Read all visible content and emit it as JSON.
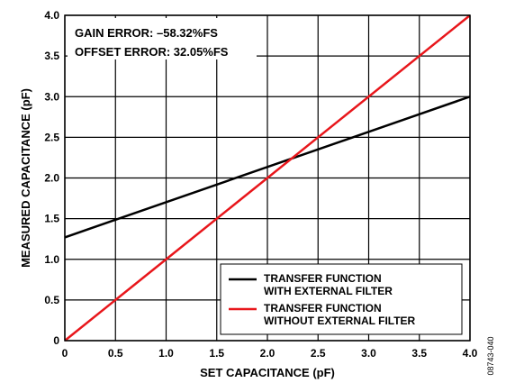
{
  "chart_data": {
    "type": "line",
    "xlabel": "SET CAPACITANCE (pF)",
    "ylabel": "MEASURED CAPACITANCE (pF)",
    "xlim": [
      0,
      4.0
    ],
    "ylim": [
      0,
      4.0
    ],
    "x_ticks": [
      "0",
      "0.5",
      "1.0",
      "1.5",
      "2.0",
      "2.5",
      "3.0",
      "3.5",
      "4.0"
    ],
    "y_ticks": [
      "0",
      "0.5",
      "1.0",
      "1.5",
      "2.0",
      "2.5",
      "3.0",
      "3.5",
      "4.0"
    ],
    "grid": true,
    "annotations": [
      "GAIN ERROR: –58.32%FS",
      "OFFSET ERROR: 32.05%FS"
    ],
    "legend_position": "bottom-right",
    "series": [
      {
        "name": "TRANSFER FUNCTION\nWITH EXTERNAL FILTER",
        "legend_lines": [
          "TRANSFER FUNCTION",
          "WITH EXTERNAL FILTER"
        ],
        "color": "#000000",
        "x": [
          0,
          4.0
        ],
        "y": [
          1.27,
          3.0
        ]
      },
      {
        "name": "TRANSFER FUNCTION\nWITHOUT EXTERNAL FILTER",
        "legend_lines": [
          "TRANSFER FUNCTION",
          "WITHOUT EXTERNAL FILTER"
        ],
        "color": "#e8161b",
        "x": [
          0,
          4.0
        ],
        "y": [
          0,
          4.0
        ]
      }
    ],
    "figure_id": "08743-040"
  }
}
